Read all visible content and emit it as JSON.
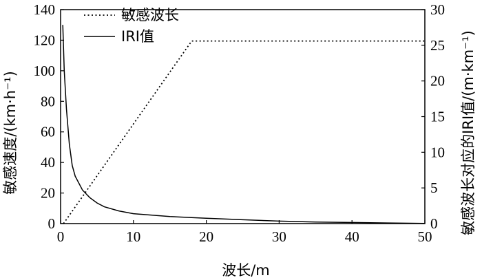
{
  "chart_data": {
    "type": "line",
    "xlabel": "波长/m",
    "ylabel_left": "敏感速度/(km·h⁻¹)",
    "ylabel_right": "敏感波长对应的IRI值/(m·km⁻¹)",
    "xlim": [
      0,
      50
    ],
    "ylim_left": [
      0,
      140
    ],
    "ylim_right": [
      0,
      30
    ],
    "x_ticks": [
      "0",
      "10",
      "20",
      "30",
      "40",
      "50"
    ],
    "y_left_ticks": [
      "0",
      "20",
      "40",
      "60",
      "80",
      "100",
      "120",
      "140"
    ],
    "y_right_ticks": [
      "0",
      "5",
      "10",
      "15",
      "20",
      "25",
      "30"
    ],
    "legend_position": "top-left",
    "series": [
      {
        "name": "敏感波长",
        "axis": "right",
        "style": "dotted",
        "points": [
          [
            0.4,
            0
          ],
          [
            18,
            25.6
          ],
          [
            50,
            25.6
          ]
        ]
      },
      {
        "name": "IRI值",
        "axis": "left",
        "style": "solid",
        "points": [
          [
            0.3,
            130
          ],
          [
            0.5,
            100
          ],
          [
            0.8,
            75
          ],
          [
            1.2,
            52
          ],
          [
            1.6,
            38
          ],
          [
            2.0,
            31
          ],
          [
            3,
            22
          ],
          [
            4,
            17
          ],
          [
            5,
            13.5
          ],
          [
            6,
            11
          ],
          [
            8,
            8.3
          ],
          [
            10,
            6.5
          ],
          [
            15,
            4.6
          ],
          [
            20,
            3.5
          ],
          [
            25,
            2.5
          ],
          [
            30,
            1.6
          ],
          [
            35,
            1.0
          ],
          [
            40,
            0.7
          ],
          [
            45,
            0.4
          ],
          [
            50,
            0.1
          ]
        ]
      }
    ]
  }
}
